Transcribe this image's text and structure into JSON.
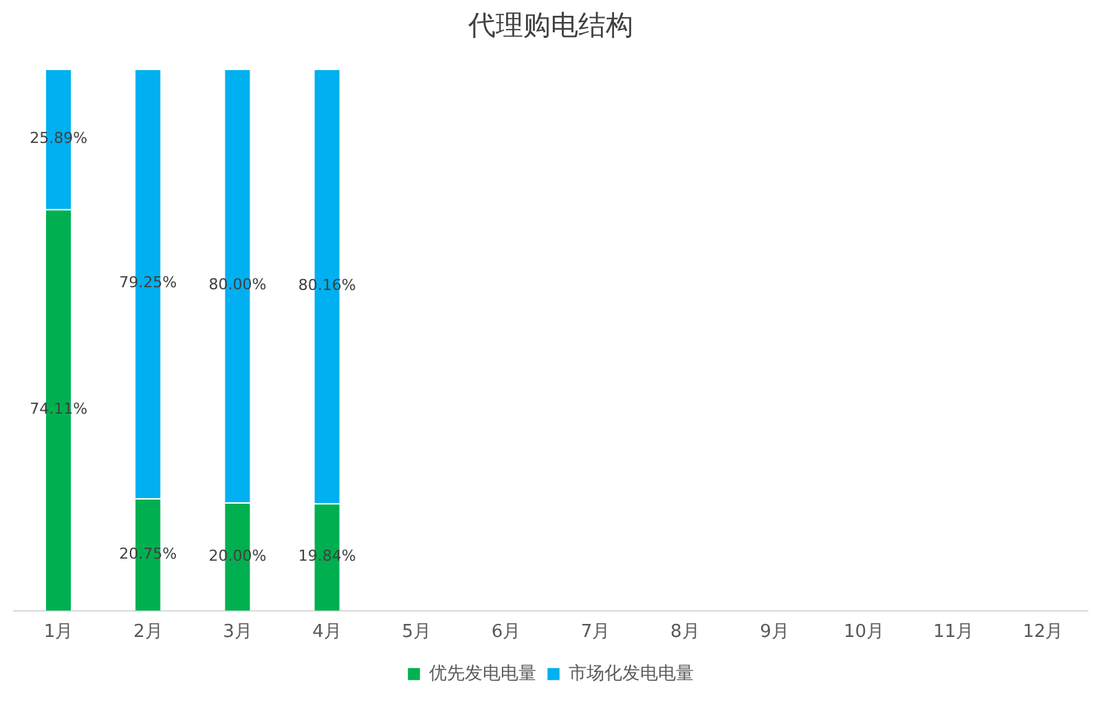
{
  "chart_data": {
    "type": "bar",
    "title": "代理购电结构",
    "categories": [
      "1月",
      "2月",
      "3月",
      "4月",
      "5月",
      "6月",
      "7月",
      "8月",
      "9月",
      "10月",
      "11月",
      "12月"
    ],
    "stacked": true,
    "ylim": [
      0,
      100
    ],
    "tick_labels": "x",
    "grid": false,
    "legend": "bottom",
    "series": [
      {
        "name": "优先发电电量",
        "color": "#00b050",
        "values": [
          74.11,
          20.75,
          20.0,
          19.84,
          null,
          null,
          null,
          null,
          null,
          null,
          null,
          null
        ],
        "value_labels": [
          "74.11%",
          "20.75%",
          "20.00%",
          "19.84%",
          null,
          null,
          null,
          null,
          null,
          null,
          null,
          null
        ]
      },
      {
        "name": "市场化发电电量",
        "color": "#00b0f0",
        "values": [
          25.89,
          79.25,
          80.0,
          80.16,
          null,
          null,
          null,
          null,
          null,
          null,
          null,
          null
        ],
        "value_labels": [
          "25.89%",
          "79.25%",
          "80.00%",
          "80.16%",
          null,
          null,
          null,
          null,
          null,
          null,
          null,
          null
        ]
      }
    ]
  }
}
